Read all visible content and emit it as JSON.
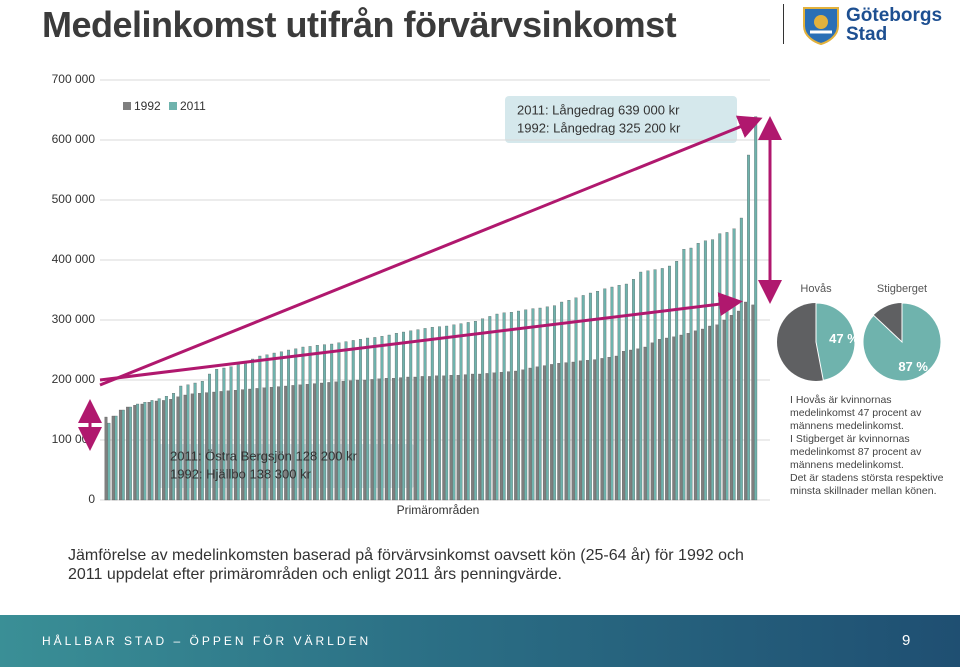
{
  "header": {
    "title": "Medelinkomst utifrån förvärvsinkomst",
    "logo": [
      "Göteborgs",
      "Stad"
    ]
  },
  "chart_data": [
    {
      "type": "bar",
      "x_label": "Primärområden",
      "ylim": [
        0,
        700000
      ],
      "yticks": [
        0,
        {
          "value": 100000,
          "label": "100 000"
        },
        {
          "value": 200000,
          "label": "200 000"
        },
        {
          "value": 300000,
          "label": "300 000"
        },
        {
          "value": 400000,
          "label": "400 000"
        },
        {
          "value": 500000,
          "label": "500 000"
        },
        {
          "value": 600000,
          "label": "600 000"
        },
        {
          "value": 700000,
          "label": "700 000"
        }
      ],
      "grid": true,
      "legend": "upper left",
      "annotations": [
        [
          "2011: Långedrag 639 000 kr",
          "1992: Långedrag 325 200 kr"
        ],
        [
          "2011: Östra Bergsjön 128 200 kr",
          "1992: Hjällbo 138 300 kr"
        ]
      ],
      "categories": [
        null,
        null,
        null,
        null,
        null,
        null,
        null,
        null,
        null,
        null,
        null,
        null,
        null,
        null,
        null,
        null,
        null,
        null,
        null,
        null,
        null,
        null,
        null,
        null,
        null,
        null,
        null,
        null,
        null,
        null,
        null,
        null,
        null,
        null,
        null,
        null,
        null,
        null,
        null,
        null,
        null,
        null,
        null,
        null,
        null,
        null,
        null,
        null,
        null,
        null,
        null,
        null,
        null,
        null,
        null,
        null,
        null,
        null,
        null,
        null,
        null,
        null,
        null,
        null,
        null,
        null,
        null,
        null,
        null,
        null,
        null,
        null,
        null,
        null,
        null,
        null,
        null,
        null,
        null,
        null,
        null,
        null,
        null,
        null,
        null,
        null,
        null,
        null,
        null,
        null,
        null
      ],
      "series": [
        {
          "name": "1992",
          "color": "#7f7f7f",
          "values": [
            138300,
            140000,
            150000,
            155000,
            158000,
            160000,
            163000,
            165000,
            166000,
            168000,
            172000,
            175000,
            177000,
            178000,
            179000,
            180000,
            181000,
            182000,
            183000,
            184000,
            185000,
            186000,
            187000,
            188000,
            189000,
            190000,
            191000,
            192000,
            193000,
            194000,
            195000,
            196000,
            197000,
            198000,
            199000,
            200000,
            200000,
            201000,
            202000,
            203000,
            203000,
            204000,
            205000,
            205000,
            206000,
            206000,
            207000,
            207000,
            208000,
            208000,
            209000,
            210000,
            210000,
            211000,
            212000,
            213000,
            214000,
            215000,
            217000,
            220000,
            222000,
            224000,
            226000,
            228000,
            229000,
            230000,
            232000,
            233000,
            234000,
            236000,
            238000,
            240000,
            248000,
            250000,
            252000,
            255000,
            262000,
            268000,
            270000,
            272000,
            275000,
            278000,
            282000,
            285000,
            290000,
            292000,
            300000,
            308000,
            315000,
            330000,
            325200
          ]
        },
        {
          "name": "2011",
          "color": "#6fb3ad",
          "values": [
            128200,
            140000,
            150000,
            155000,
            160000,
            163000,
            166000,
            169000,
            173000,
            178000,
            190000,
            192000,
            195000,
            198000,
            210000,
            218000,
            220000,
            222000,
            226000,
            230000,
            235000,
            240000,
            242000,
            245000,
            247000,
            250000,
            252000,
            255000,
            256000,
            258000,
            259000,
            260000,
            262000,
            264000,
            266000,
            268000,
            270000,
            271000,
            273000,
            275000,
            278000,
            280000,
            282000,
            284000,
            286000,
            288000,
            289000,
            290000,
            292000,
            294000,
            296000,
            298000,
            302000,
            306000,
            310000,
            312000,
            313000,
            315000,
            317000,
            319000,
            320000,
            322000,
            324000,
            330000,
            333000,
            337000,
            341000,
            345000,
            348000,
            352000,
            355000,
            358000,
            360000,
            368000,
            380000,
            382000,
            384000,
            386000,
            390000,
            398000,
            418000,
            420000,
            428000,
            432000,
            434000,
            444000,
            446000,
            452000,
            470000,
            575000,
            639000
          ]
        }
      ]
    },
    {
      "type": "pie",
      "title": "Hovås",
      "values": [
        47
      ],
      "value_labels": [
        "47 %"
      ],
      "color": "#6fb3ad",
      "rest_color": "#5f6062"
    },
    {
      "type": "pie",
      "title": "Stigberget",
      "values": [
        87
      ],
      "value_labels": [
        "87 %"
      ],
      "color": "#6fb3ad",
      "rest_color": "#5f6062"
    }
  ],
  "text_box": [
    "I Hovås är kvinnornas medelinkomst 47 procent av männens medelinkomst.",
    "I Stigberget är kvinnornas medelinkomst 87 procent av männens medelinkomst.",
    "Det är stadens största respektive minsta skillnader mellan könen."
  ],
  "caption": "Jämförelse av medelinkomsten baserad på förvärvsinkomst oavsett kön (25-64 år) för 1992 och 2011 uppdelat efter primärområden och enligt 2011 års penningvärde.",
  "footer": {
    "tagline": "HÅLLBAR STAD – ÖPPEN FÖR VÄRLDEN",
    "page": 9
  }
}
